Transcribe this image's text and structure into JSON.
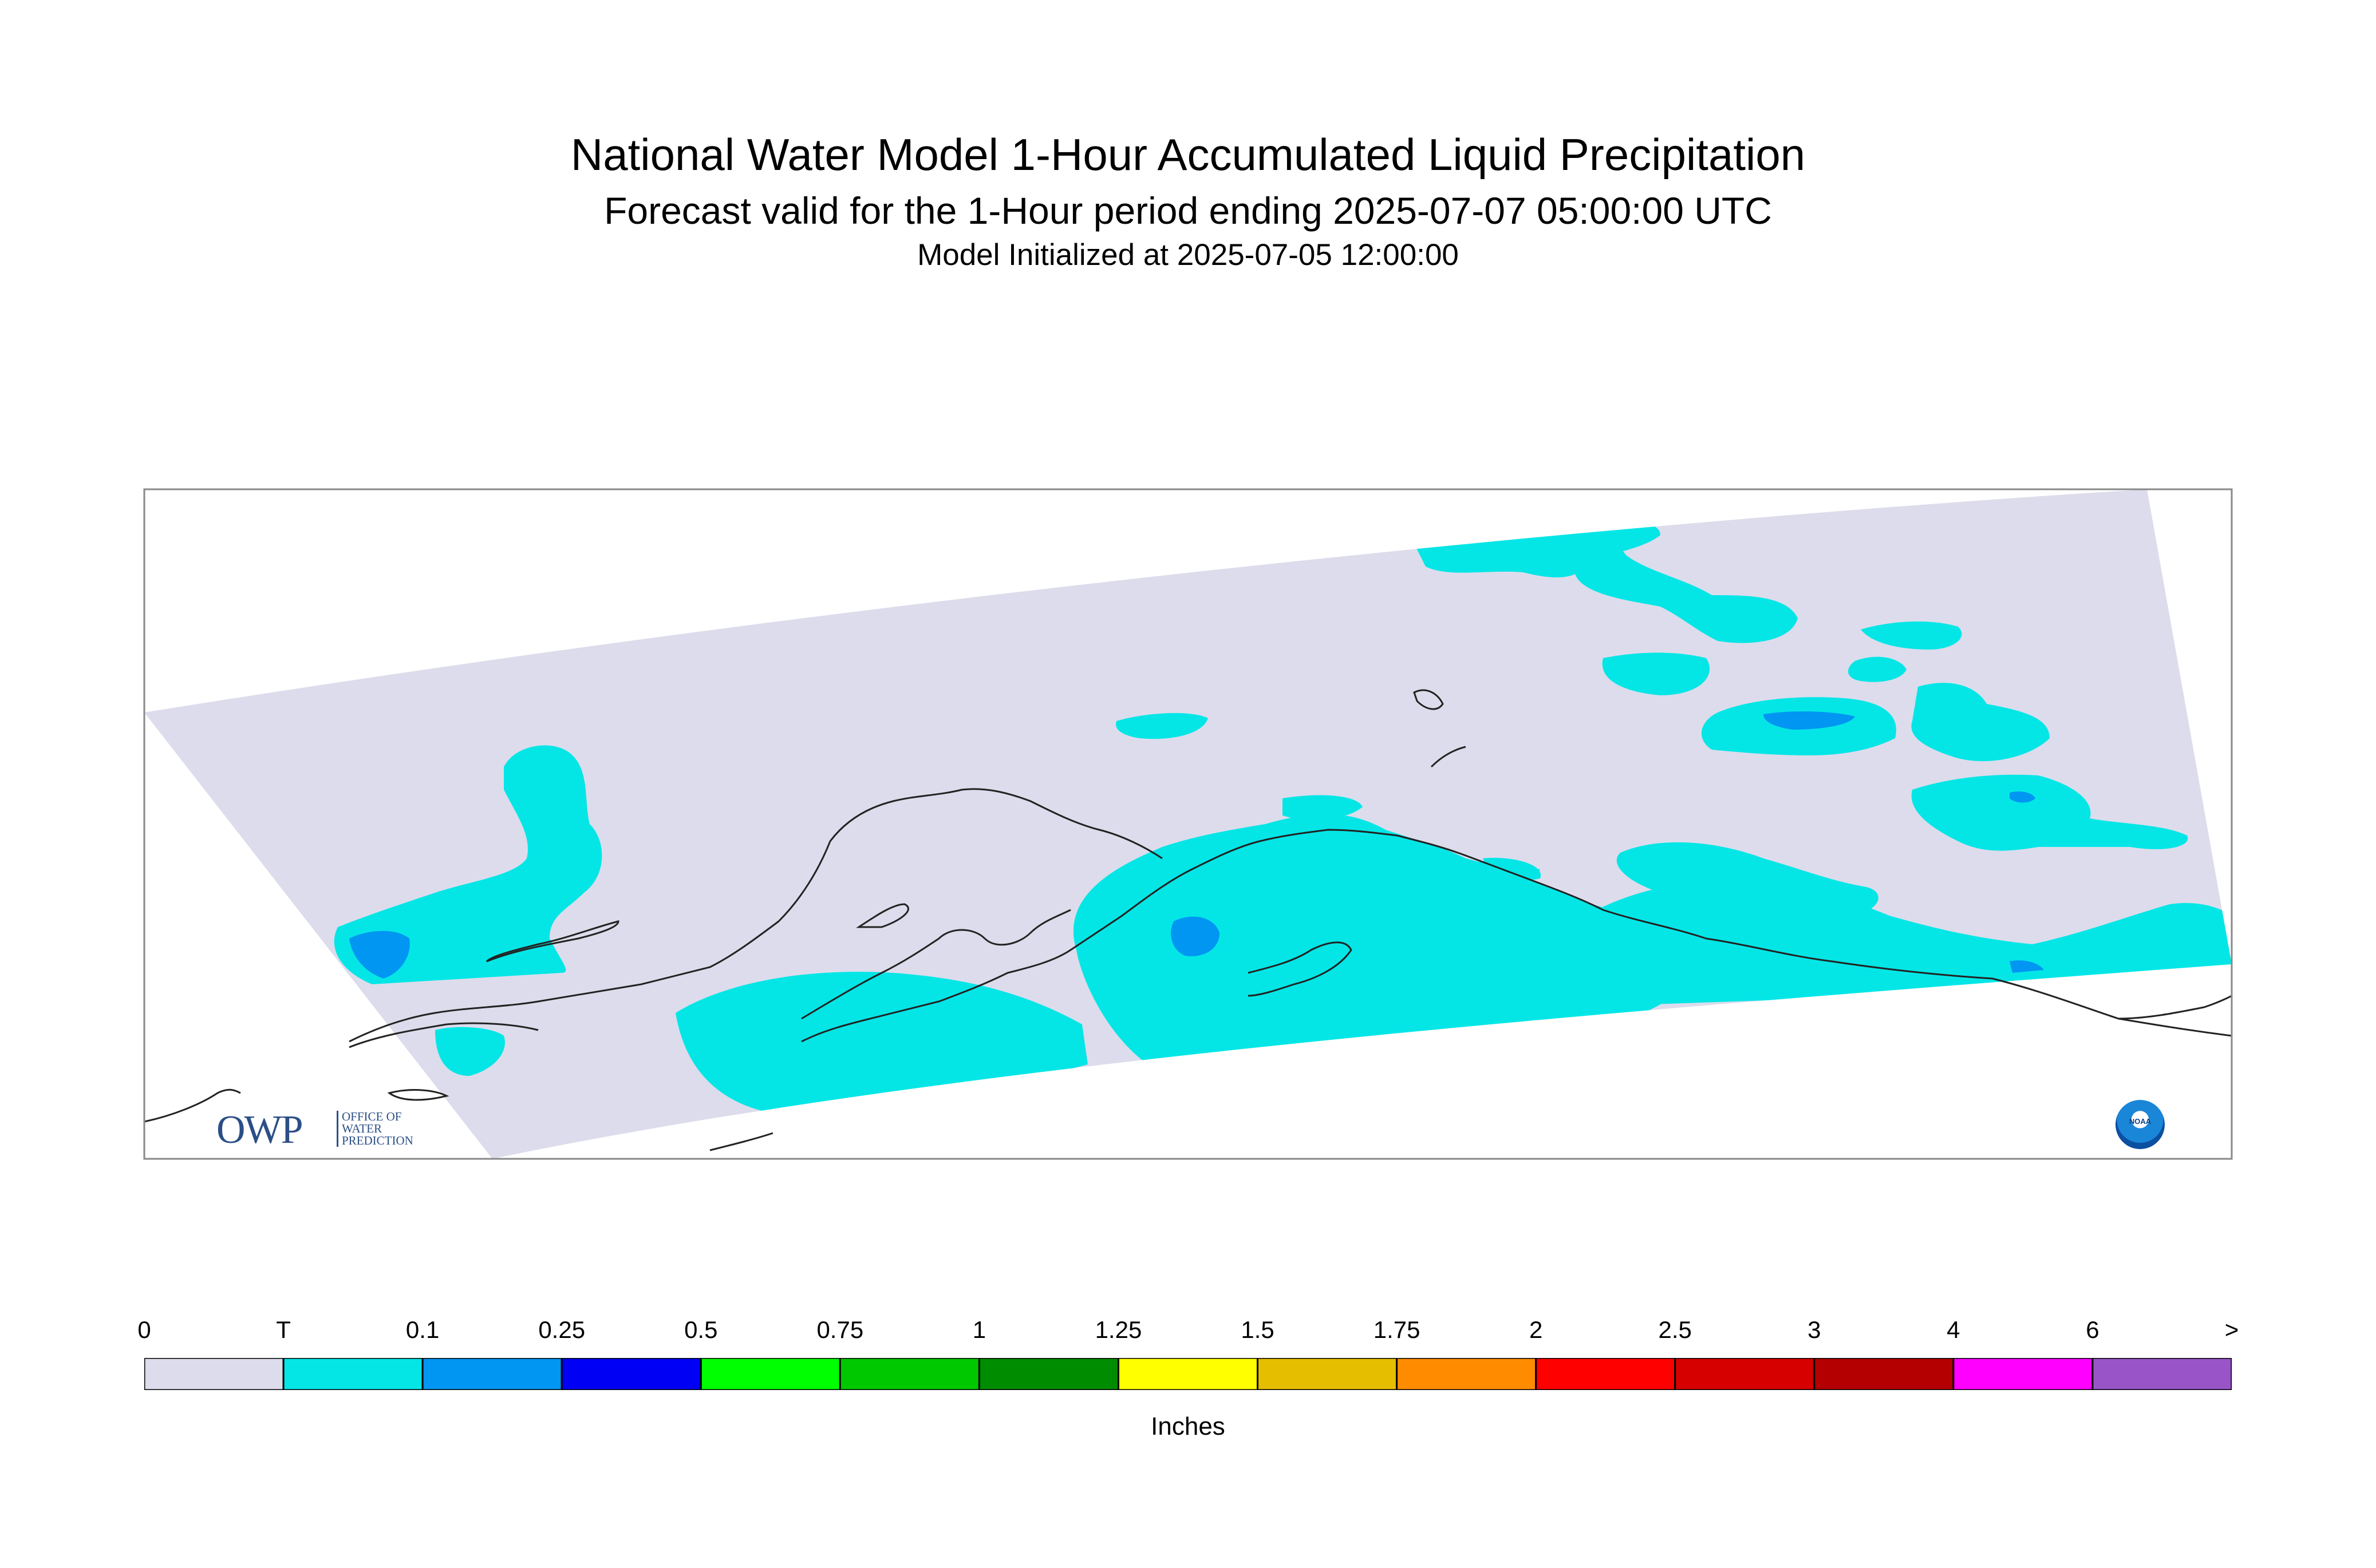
{
  "title": "National Water Model 1-Hour Accumulated Liquid Precipitation",
  "subtitle": "Forecast valid for the 1-Hour period ending 2025-07-07 05:00:00 UTC",
  "initialized": "Model Initialized at 2025-07-05 12:00:00",
  "logos": {
    "owp": "OWP",
    "owp_sub": [
      "OFFICE OF",
      "WATER",
      "PREDICTION"
    ],
    "noaa": "NOAA"
  },
  "legend": {
    "units": "Inches",
    "labels": [
      "0",
      "T",
      "0.1",
      "0.25",
      "0.5",
      "0.75",
      "1",
      "1.25",
      "1.5",
      "1.75",
      "2",
      "2.5",
      "3",
      "4",
      "6",
      ">"
    ],
    "colors": [
      "#dcdcec",
      "#04e6e6",
      "#0096f2",
      "#0000f4",
      "#00ff00",
      "#00c800",
      "#008c00",
      "#ffff00",
      "#e6be00",
      "#ff8c00",
      "#ff0000",
      "#d70000",
      "#b40000",
      "#ff00ff",
      "#9955c8"
    ]
  },
  "colors": {
    "domain": "#dcdcec",
    "trace": "#04e6e6",
    "light": "#0096f2",
    "coast": "#222222",
    "frame": "#888888"
  }
}
